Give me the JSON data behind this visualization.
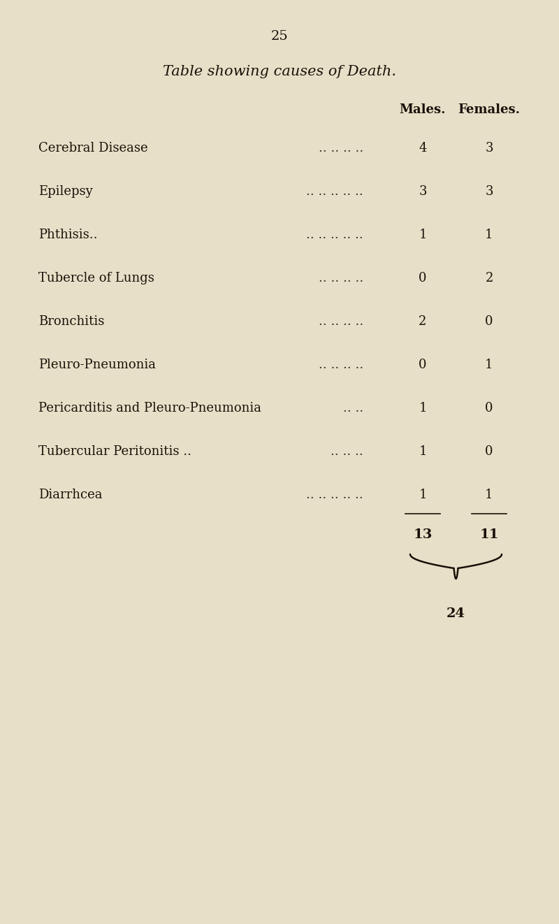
{
  "page_number": "25",
  "title": "Table showing causes of Death.",
  "col_headers": [
    "Males.",
    "Females."
  ],
  "rows": [
    {
      "cause": "Cerebral Disease",
      "dots": ".. .. .. ..",
      "males": "4",
      "females": "3"
    },
    {
      "cause": "Epilepsy",
      "dots": ".. .. .. .. ..",
      "males": "3",
      "females": "3"
    },
    {
      "cause": "Phthisis..",
      "dots": ".. .. .. .. ..",
      "males": "1",
      "females": "1"
    },
    {
      "cause": "Tubercle of Lungs",
      "dots": ".. .. .. ..",
      "males": "0",
      "females": "2"
    },
    {
      "cause": "Bronchitis",
      "dots": ".. .. .. ..",
      "males": "2",
      "females": "0"
    },
    {
      "cause": "Pleuro-Pneumonia",
      "dots": ".. .. .. ..",
      "males": "0",
      "females": "1"
    },
    {
      "cause": "Pericarditis and Pleuro-Pneumonia",
      "dots": ".. ..",
      "males": "1",
      "females": "0"
    },
    {
      "cause": "Tubercular Peritonitis ..",
      "dots": ".. .. ..",
      "males": "1",
      "females": "0"
    },
    {
      "cause": "Diarrhcea",
      "dots": ".. .. .. .. ..",
      "males": "1",
      "females": "1"
    }
  ],
  "total_males": "13",
  "total_females": "11",
  "grand_total": "24",
  "bg_color": "#e8dfc8",
  "text_color": "#1a1008",
  "title_fontsize": 15,
  "header_fontsize": 13,
  "row_fontsize": 13,
  "page_num_fontsize": 14
}
